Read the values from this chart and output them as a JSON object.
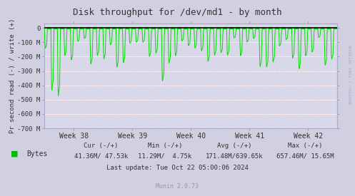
{
  "title": "Disk throughput for /dev/md1 - by month",
  "ylabel": "Pr second read (-) / write (+)",
  "xlabel_ticks": [
    "Week 38",
    "Week 39",
    "Week 40",
    "Week 41",
    "Week 42"
  ],
  "ylim": [
    -700,
    30
  ],
  "yticks": [
    0,
    -100,
    -200,
    -300,
    -400,
    -500,
    -600,
    -700
  ],
  "ytick_labels": [
    "0",
    "-100 M",
    "-200 M",
    "-300 M",
    "-400 M",
    "-500 M",
    "-600 M",
    "-700 M"
  ],
  "bg_color": "#d0d0e0",
  "plot_bg_color": "#d8d8e8",
  "grid_color_h": "#ffffff",
  "grid_color_pink": "#ffbbbb",
  "grid_color_v": "#ccccdd",
  "line_color": "#00dd00",
  "zero_line_color": "#000000",
  "legend_label": "Bytes",
  "legend_color": "#00bb00",
  "footer_cur": "Cur (-/+)",
  "footer_min": "Min (-/+)",
  "footer_avg": "Avg (-/+)",
  "footer_max": "Max (-/+)",
  "footer_bytes_cur": "41.36M/ 47.53k",
  "footer_bytes_min": "11.29M/  4.75k",
  "footer_bytes_avg": "171.48M/639.65k",
  "footer_bytes_max": "657.46M/ 15.65M",
  "last_update": "Last update: Tue Oct 22 05:00:06 2024",
  "munin_version": "Munin 2.0.73",
  "rrdtool_label": "RRDTOOL / TOBI OETIKER",
  "title_color": "#333333",
  "text_color": "#333333",
  "munin_color": "#999999"
}
